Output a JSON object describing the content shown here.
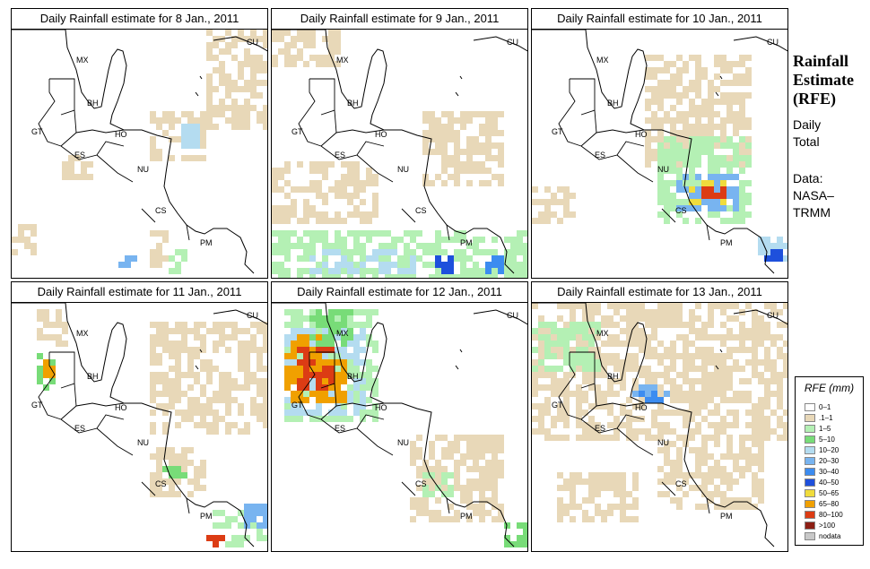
{
  "side": {
    "title_lines": [
      "Rainfall",
      "Estimate",
      "(RFE)"
    ],
    "daily": [
      "Daily",
      "Total"
    ],
    "data": [
      "Data:",
      "NASA–",
      "TRMM"
    ]
  },
  "panels": [
    {
      "title": "Daily Rainfall estimate for  8 Jan., 2011",
      "rain": [
        [
          0.62,
          0.68,
          0.9,
          1.0,
          2
        ],
        [
          0.55,
          0.62,
          0.82,
          0.95,
          1
        ],
        [
          0.2,
          0.3,
          0.52,
          0.6,
          1
        ],
        [
          0.55,
          0.75,
          0.35,
          0.55,
          1
        ],
        [
          0.68,
          0.74,
          0.38,
          0.48,
          4
        ],
        [
          0.78,
          1.0,
          0.0,
          0.4,
          1
        ],
        [
          0.02,
          0.12,
          0.8,
          0.92,
          1
        ],
        [
          0.42,
          0.48,
          0.92,
          0.97,
          5
        ]
      ]
    },
    {
      "title": "Daily Rainfall estimate for  9 Jan., 2011",
      "rain": [
        [
          0.0,
          1.0,
          0.82,
          1.0,
          2
        ],
        [
          0.0,
          0.4,
          0.55,
          0.78,
          1
        ],
        [
          0.6,
          0.9,
          0.35,
          0.65,
          1
        ],
        [
          0.65,
          0.72,
          0.92,
          0.99,
          7
        ],
        [
          0.85,
          0.9,
          0.92,
          0.98,
          6
        ],
        [
          0.15,
          0.55,
          0.9,
          1.0,
          4
        ],
        [
          0.0,
          0.25,
          0.0,
          0.15,
          1
        ]
      ]
    },
    {
      "title": "Daily Rainfall estimate for  10 Jan., 2011",
      "rain": [
        [
          0.45,
          0.85,
          0.12,
          0.55,
          1
        ],
        [
          0.5,
          0.85,
          0.45,
          0.8,
          2
        ],
        [
          0.58,
          0.8,
          0.58,
          0.72,
          5
        ],
        [
          0.62,
          0.76,
          0.62,
          0.7,
          8
        ],
        [
          0.66,
          0.74,
          0.64,
          0.69,
          10
        ],
        [
          0.88,
          1.0,
          0.85,
          0.95,
          4
        ],
        [
          0.92,
          0.98,
          0.9,
          0.95,
          7
        ],
        [
          0.0,
          0.15,
          0.65,
          0.8,
          1
        ]
      ]
    },
    {
      "title": "Daily Rainfall estimate for  11 Jan., 2011",
      "rain": [
        [
          0.55,
          1.0,
          0.1,
          0.55,
          1
        ],
        [
          0.1,
          0.22,
          0.05,
          0.2,
          1
        ],
        [
          0.12,
          0.18,
          0.22,
          0.35,
          3
        ],
        [
          0.14,
          0.17,
          0.24,
          0.3,
          9
        ],
        [
          0.55,
          0.75,
          0.6,
          0.8,
          1
        ],
        [
          0.6,
          0.68,
          0.65,
          0.72,
          3
        ],
        [
          0.8,
          1.0,
          0.85,
          1.0,
          2
        ],
        [
          0.78,
          0.85,
          0.94,
          0.99,
          10
        ],
        [
          0.92,
          1.0,
          0.82,
          0.9,
          5
        ]
      ]
    },
    {
      "title": "Daily Rainfall estimate for  12 Jan., 2011",
      "rain": [
        [
          0.05,
          0.4,
          0.05,
          0.5,
          2
        ],
        [
          0.05,
          0.35,
          0.12,
          0.45,
          4
        ],
        [
          0.06,
          0.3,
          0.14,
          0.4,
          9
        ],
        [
          0.12,
          0.25,
          0.18,
          0.35,
          10
        ],
        [
          0.15,
          0.3,
          0.05,
          0.2,
          3
        ],
        [
          0.55,
          0.9,
          0.55,
          0.9,
          1
        ],
        [
          0.6,
          0.7,
          0.7,
          0.8,
          2
        ],
        [
          0.92,
          1.0,
          0.9,
          1.0,
          3
        ]
      ]
    },
    {
      "title": "Daily Rainfall estimate for  13 Jan., 2011",
      "rain": [
        [
          0.0,
          1.0,
          0.0,
          0.55,
          1
        ],
        [
          0.0,
          0.25,
          0.1,
          0.3,
          2
        ],
        [
          0.38,
          0.55,
          0.35,
          0.4,
          5
        ],
        [
          0.42,
          0.5,
          0.36,
          0.39,
          6
        ],
        [
          0.5,
          0.9,
          0.55,
          0.85,
          1
        ],
        [
          0.1,
          0.4,
          0.7,
          0.9,
          1
        ]
      ]
    }
  ],
  "country_labels": {
    "mx": "MX",
    "cu": "CU",
    "bh": "BH",
    "gt": "GT",
    "ho": "HO",
    "es": "ES",
    "nu": "NU",
    "cs": "CS",
    "pm": "PM"
  },
  "legend": {
    "title": "RFE (mm)",
    "items": [
      {
        "label": "0–1",
        "color": "#ffffff"
      },
      {
        "label": ".1–1",
        "color": "#e8d8b8"
      },
      {
        "label": "1–5",
        "color": "#b4f0b4"
      },
      {
        "label": "5–10",
        "color": "#78dc78"
      },
      {
        "label": "10–20",
        "color": "#b4dcf0"
      },
      {
        "label": "20–30",
        "color": "#78b4f0"
      },
      {
        "label": "30–40",
        "color": "#3c8cf0"
      },
      {
        "label": "40–50",
        "color": "#1e50dc"
      },
      {
        "label": "50–65",
        "color": "#f0dc3c"
      },
      {
        "label": "65–80",
        "color": "#f0a000"
      },
      {
        "label": "80–100",
        "color": "#dc3c14"
      },
      {
        "label": ">100",
        "color": "#8c1e14"
      },
      {
        "label": "nodata",
        "color": "#c8c8c8"
      }
    ]
  }
}
